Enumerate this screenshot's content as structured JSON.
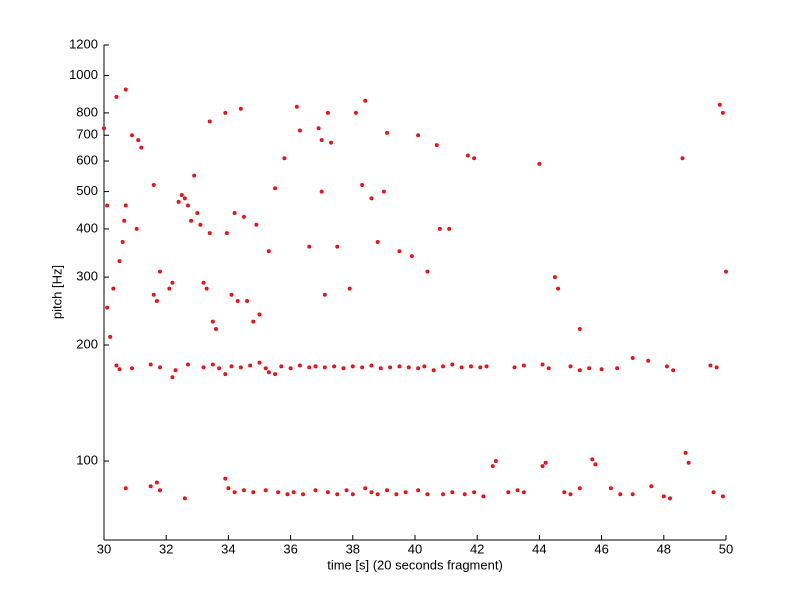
{
  "chart_data": {
    "type": "scatter",
    "x_label": "time [s] (20 seconds fragment)",
    "y_label": "pitch [Hz]",
    "y_scale": "log",
    "xlim": [
      30,
      50
    ],
    "xticks": [
      30,
      32,
      34,
      36,
      38,
      40,
      42,
      44,
      46,
      48,
      50
    ],
    "ylim": [
      62.4,
      1200
    ],
    "yticks": [
      100,
      200,
      300,
      400,
      500,
      600,
      700,
      800,
      1000,
      1200
    ],
    "x": [
      30.7,
      31.5,
      31.8,
      31.7,
      32.6,
      33.9,
      34.0,
      34.2,
      34.5,
      34.8,
      35.2,
      35.6,
      35.9,
      36.1,
      36.4,
      36.8,
      37.2,
      37.5,
      37.8,
      38.0,
      38.4,
      38.6,
      38.8,
      39.1,
      39.4,
      39.7,
      40.1,
      40.4,
      40.9,
      41.2,
      41.6,
      41.9,
      42.2,
      42.5,
      42.6,
      43.0,
      43.3,
      43.5,
      44.1,
      44.2,
      44.8,
      45.0,
      45.3,
      45.7,
      45.8,
      46.3,
      46.6,
      47.0,
      47.6,
      48.0,
      48.2,
      48.7,
      48.8,
      49.6,
      49.9,
      30.4,
      30.5,
      30.9,
      31.5,
      31.8,
      32.2,
      32.3,
      32.7,
      33.2,
      33.5,
      33.7,
      33.9,
      34.1,
      34.4,
      34.7,
      35.0,
      35.2,
      35.3,
      35.5,
      35.7,
      36.0,
      36.3,
      36.6,
      36.8,
      37.1,
      37.4,
      37.7,
      38.0,
      38.3,
      38.6,
      38.9,
      39.2,
      39.5,
      39.8,
      40.1,
      40.3,
      40.6,
      40.9,
      41.2,
      41.5,
      41.8,
      42.1,
      42.3,
      43.2,
      43.5,
      44.1,
      44.3,
      45.0,
      45.3,
      45.6,
      46.0,
      46.5,
      47.0,
      47.5,
      48.1,
      48.3,
      49.5,
      49.7,
      30.0,
      30.1,
      30.1,
      30.2,
      30.3,
      30.4,
      30.5,
      30.6,
      30.65,
      30.7,
      30.7,
      30.9,
      31.1,
      31.2,
      31.05,
      31.6,
      31.6,
      31.7,
      31.8,
      32.1,
      32.2,
      32.4,
      32.5,
      32.6,
      32.7,
      32.8,
      32.9,
      33.0,
      33.1,
      33.2,
      33.3,
      33.4,
      33.4,
      33.5,
      33.6,
      33.9,
      33.95,
      34.1,
      34.2,
      34.3,
      34.4,
      34.5,
      34.6,
      34.8,
      34.9,
      35.0,
      35.3,
      35.5,
      35.8,
      36.2,
      36.3,
      36.6,
      36.9,
      37.0,
      37.0,
      37.1,
      37.2,
      37.3,
      37.5,
      37.9,
      38.1,
      38.3,
      38.4,
      38.6,
      38.8,
      39.0,
      39.1,
      39.5,
      39.9,
      40.1,
      40.4,
      40.7,
      40.8,
      41.1,
      41.7,
      41.9,
      44.0,
      44.5,
      44.6,
      45.3,
      48.6,
      49.8,
      49.9,
      50.0
    ],
    "series": [
      {
        "color": "#e8141b",
        "values": [
          85,
          86,
          84,
          88,
          80,
          90,
          85,
          83,
          84,
          83,
          84,
          83,
          82,
          83,
          82,
          84,
          83,
          82,
          84,
          82,
          85,
          83,
          82,
          84,
          82,
          83,
          84,
          82,
          82,
          83,
          82,
          83,
          81,
          97,
          100,
          83,
          84,
          83,
          97,
          99,
          83,
          82,
          85,
          101,
          98,
          85,
          82,
          82,
          86,
          81,
          80,
          105,
          99,
          83,
          81,
          177,
          173,
          174,
          178,
          175,
          165,
          172,
          178,
          175,
          178,
          174,
          168,
          176,
          175,
          177,
          180,
          174,
          170,
          168,
          176,
          174,
          177,
          175,
          176,
          175,
          176,
          174,
          176,
          175,
          177,
          174,
          175,
          176,
          175,
          174,
          176,
          172,
          176,
          178,
          175,
          176,
          175,
          176,
          175,
          177,
          178,
          174,
          176,
          172,
          174,
          173,
          174,
          185,
          182,
          176,
          172,
          177,
          175,
          730,
          460,
          250,
          210,
          280,
          880,
          330,
          370,
          420,
          460,
          920,
          700,
          680,
          650,
          400,
          520,
          270,
          260,
          310,
          280,
          290,
          470,
          490,
          480,
          460,
          420,
          550,
          440,
          410,
          290,
          280,
          760,
          390,
          230,
          220,
          800,
          390,
          270,
          440,
          260,
          820,
          430,
          260,
          230,
          410,
          240,
          350,
          510,
          610,
          830,
          720,
          360,
          730,
          680,
          500,
          270,
          800,
          670,
          360,
          280,
          800,
          520,
          860,
          480,
          370,
          500,
          710,
          350,
          340,
          700,
          310,
          660,
          400,
          400,
          620,
          610,
          590,
          300,
          280,
          220,
          610,
          840,
          800,
          310
        ]
      }
    ]
  }
}
